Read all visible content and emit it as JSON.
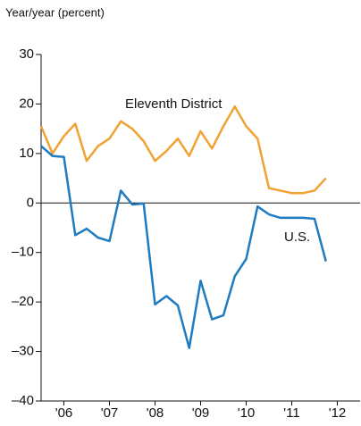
{
  "chart_data": {
    "type": "line",
    "y_axis_label": "Year/year (percent)",
    "x": [
      2006,
      2006.25,
      2006.5,
      2006.75,
      2007,
      2007.25,
      2007.5,
      2007.75,
      2008,
      2008.25,
      2008.5,
      2008.75,
      2009,
      2009.25,
      2009.5,
      2009.75,
      2010,
      2010.25,
      2010.5,
      2010.75,
      2011,
      2011.25,
      2011.5,
      2011.75,
      2012,
      2012.25
    ],
    "series": [
      {
        "name": "Eleventh District",
        "color": "#f0a232",
        "values": [
          15.5,
          10,
          13.5,
          16,
          8.5,
          11.5,
          13,
          16.5,
          15,
          12.5,
          8.5,
          10.5,
          13,
          9.5,
          14.5,
          11,
          15.5,
          19.5,
          15.5,
          13,
          3,
          2.5,
          2,
          2,
          2.5,
          5
        ]
      },
      {
        "name": "U.S.",
        "color": "#1f7bbf",
        "values": [
          11.5,
          9.5,
          9.3,
          -6.5,
          -5.2,
          -7,
          -7.7,
          2.5,
          -0.3,
          -0.1,
          -20.5,
          -18.8,
          -20.7,
          -29.3,
          -15.7,
          -23.5,
          -22.7,
          -14.8,
          -11.3,
          -0.7,
          -2.3,
          -3,
          -3,
          -3,
          -3.2,
          -11.8
        ]
      }
    ],
    "xlim": [
      2006,
      2013
    ],
    "xticks": [
      {
        "value": 2006.5,
        "label": "'06"
      },
      {
        "value": 2007.5,
        "label": "'07"
      },
      {
        "value": 2008.5,
        "label": "'08"
      },
      {
        "value": 2009.5,
        "label": "'09"
      },
      {
        "value": 2010.5,
        "label": "'10"
      },
      {
        "value": 2011.5,
        "label": "'11"
      },
      {
        "value": 2012.5,
        "label": "'12"
      }
    ],
    "ylim": [
      -40,
      30
    ],
    "yticks": [
      30,
      20,
      10,
      0,
      {
        "value": -10,
        "label": "–10"
      },
      {
        "value": -20,
        "label": "–20"
      },
      {
        "value": -30,
        "label": "–30"
      },
      {
        "value": -40,
        "label": "–40"
      }
    ],
    "grid": false
  }
}
